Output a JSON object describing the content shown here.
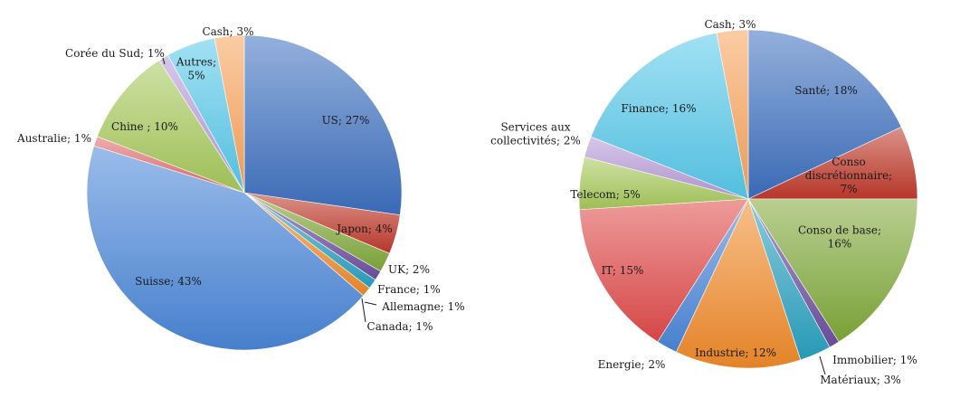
{
  "chart_data": [
    {
      "type": "pie",
      "title": "",
      "slices": [
        {
          "label": "US",
          "value": 27,
          "text": "US; 27%",
          "color": "#3c6fbf"
        },
        {
          "label": "Japon",
          "value": 4,
          "text": "Japon; 4%",
          "color": "#c0392b"
        },
        {
          "label": "UK",
          "value": 2,
          "text": "UK; 2%",
          "color": "#7fa839"
        },
        {
          "label": "France",
          "value": 1,
          "text": "France; 1%",
          "color": "#6f4fa0"
        },
        {
          "label": "Allemagne",
          "value": 1,
          "text": "Allemagne; 1%",
          "color": "#2aa1c0"
        },
        {
          "label": "Canada",
          "value": 1,
          "text": "Canada; 1%",
          "color": "#f08a2a"
        },
        {
          "label": "Suisse",
          "value": 43,
          "text": "Suisse; 43%",
          "color": "#4a86d8"
        },
        {
          "label": "Australie",
          "value": 1,
          "text": "Australie; 1%",
          "color": "#e06a6a"
        },
        {
          "label": "Chine",
          "value": 10,
          "text": "Chine ; 10%",
          "color": "#a6c85a"
        },
        {
          "label": "Corée du Sud",
          "value": 1,
          "text": "Corée du Sud; 1%",
          "color": "#b79ad8"
        },
        {
          "label": "Autres",
          "value": 5,
          "text": "Autres;\n5%",
          "color": "#56c8ea"
        },
        {
          "label": "Cash",
          "value": 3,
          "text": "Cash; 3%",
          "color": "#f7a25a"
        }
      ]
    },
    {
      "type": "pie",
      "title": "",
      "slices": [
        {
          "label": "Santé",
          "value": 18,
          "text": "Santé; 18%",
          "color": "#3c6fbf"
        },
        {
          "label": "Conso discrétionnaire",
          "value": 7,
          "text": "Conso\ndiscrétionnaire;\n7%",
          "color": "#c0392b"
        },
        {
          "label": "Conso de base",
          "value": 16,
          "text": "Conso de base;\n16%",
          "color": "#7fa839"
        },
        {
          "label": "Immobilier",
          "value": 1,
          "text": "Immobilier; 1%",
          "color": "#6f4fa0"
        },
        {
          "label": "Matériaux",
          "value": 3,
          "text": "Matériaux; 3%",
          "color": "#2aa1c0"
        },
        {
          "label": "Industrie",
          "value": 12,
          "text": "Industrie; 12%",
          "color": "#f08a2a"
        },
        {
          "label": "Energie",
          "value": 2,
          "text": "Energie; 2%",
          "color": "#4a86d8"
        },
        {
          "label": "IT",
          "value": 15,
          "text": "IT; 15%",
          "color": "#e04a4a"
        },
        {
          "label": "Telecom",
          "value": 5,
          "text": "Telecom; 5%",
          "color": "#a6c85a"
        },
        {
          "label": "Services aux collectivités",
          "value": 2,
          "text": "Services aux\ncollectivités; 2%",
          "color": "#b79ad8"
        },
        {
          "label": "Finance",
          "value": 16,
          "text": "Finance; 16%",
          "color": "#56c8ea"
        },
        {
          "label": "Cash",
          "value": 3,
          "text": "Cash; 3%",
          "color": "#f7a25a"
        }
      ]
    }
  ]
}
